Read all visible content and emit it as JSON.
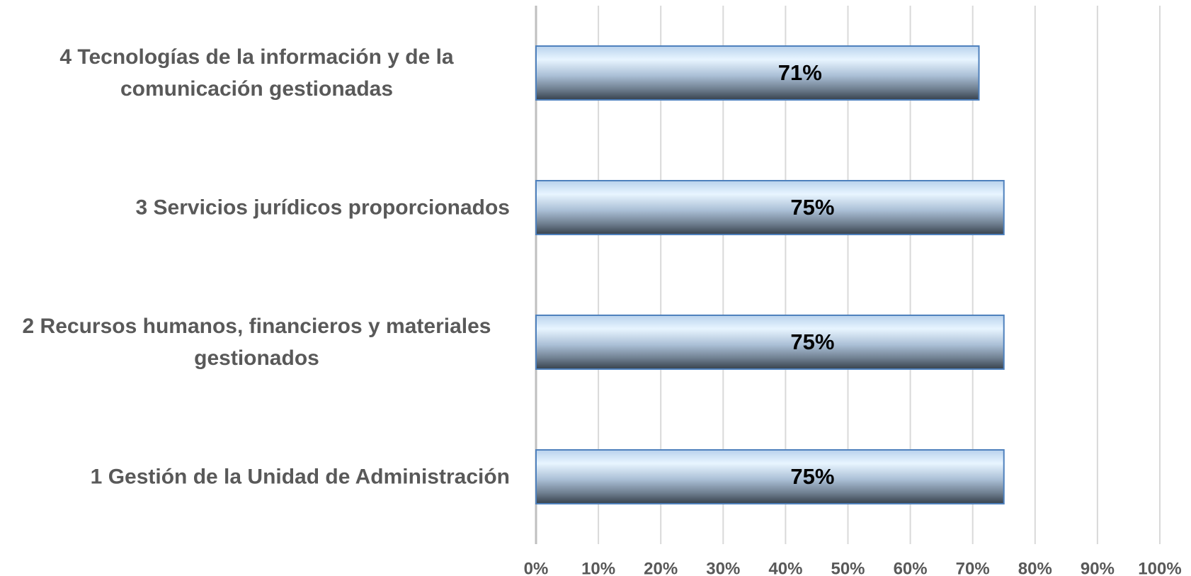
{
  "chart_data": {
    "type": "hbar",
    "categories": [
      "4 Tecnologías de la información y de la comunicación gestionadas",
      "3 Servicios jurídicos proporcionados",
      "2 Recursos humanos, financieros y materiales gestionados",
      "1 Gestión de la Unidad de Administración"
    ],
    "values": [
      71,
      75,
      75,
      75
    ],
    "value_labels": [
      "71%",
      "75%",
      "75%",
      "75%"
    ],
    "color": "#4f81bd",
    "xlim": [
      0,
      100
    ],
    "xticks": [
      {
        "value": 0,
        "label": "0%"
      },
      {
        "value": 10,
        "label": "10%"
      },
      {
        "value": 20,
        "label": "20%"
      },
      {
        "value": 30,
        "label": "30%"
      },
      {
        "value": 40,
        "label": "40%"
      },
      {
        "value": 50,
        "label": "50%"
      },
      {
        "value": 60,
        "label": "60%"
      },
      {
        "value": 70,
        "label": "70%"
      },
      {
        "value": 80,
        "label": "80%"
      },
      {
        "value": 90,
        "label": "90%"
      },
      {
        "value": 100,
        "label": "100%"
      }
    ],
    "grid": true
  }
}
